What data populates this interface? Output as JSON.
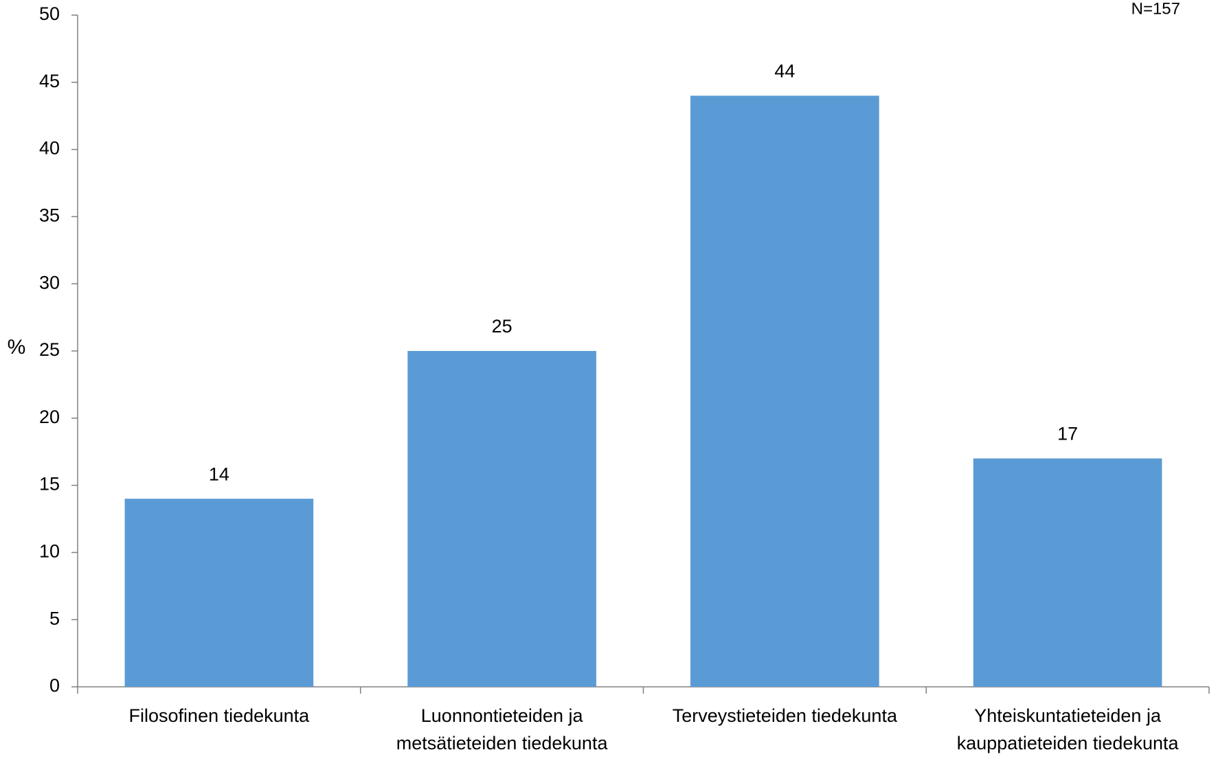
{
  "chart_data": {
    "type": "bar",
    "categories": [
      [
        "Filosofinen tiedekunta"
      ],
      [
        "Luonnontieteiden ja",
        "metsätieteiden tiedekunta"
      ],
      [
        "Terveystieteiden tiedekunta"
      ],
      [
        "Yhteiskuntatieteiden ja",
        "kauppatieteiden tiedekunta"
      ]
    ],
    "values": [
      14,
      25,
      44,
      17
    ],
    "data_labels": [
      "14",
      "25",
      "44",
      "17"
    ],
    "ylabel": "%",
    "ylim": [
      0,
      50
    ],
    "yticks": [
      0,
      5,
      10,
      15,
      20,
      25,
      30,
      35,
      40,
      45,
      50
    ],
    "annotation": "N=157",
    "bar_color": "#5b9bd5",
    "axis_color": "#808080",
    "grid": false,
    "legend": "none"
  }
}
